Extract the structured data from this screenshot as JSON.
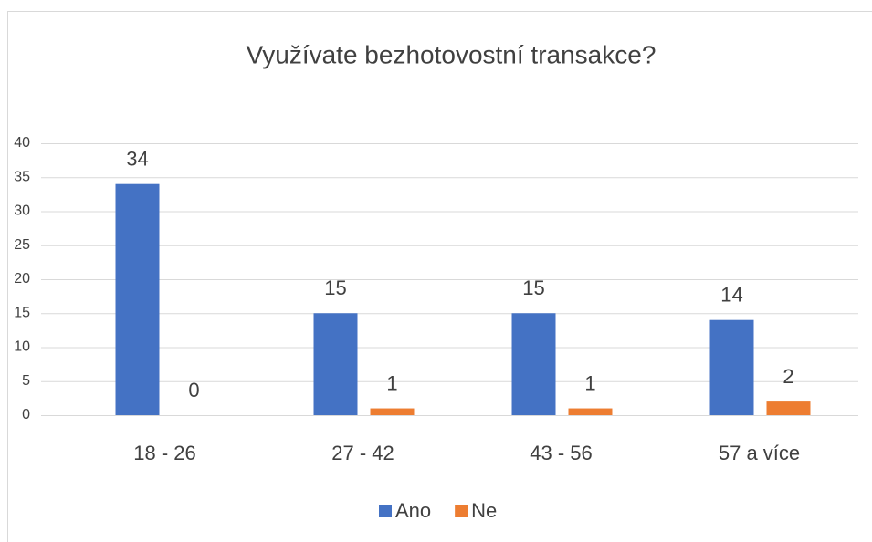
{
  "chart_data": {
    "type": "bar",
    "title": "Využívate bezhotovostní transakce?",
    "categories": [
      "18 - 26",
      "27 - 42",
      "43 - 56",
      "57 a více"
    ],
    "series": [
      {
        "name": "Ano",
        "color": "#4472c4",
        "values": [
          34,
          15,
          15,
          14
        ]
      },
      {
        "name": "Ne",
        "color": "#ed7d31",
        "values": [
          0,
          1,
          1,
          2
        ]
      }
    ],
    "ylim": [
      0,
      40
    ],
    "yticks": [
      0,
      5,
      10,
      15,
      20,
      25,
      30,
      35,
      40
    ],
    "grid": true,
    "legend": "bottom"
  }
}
